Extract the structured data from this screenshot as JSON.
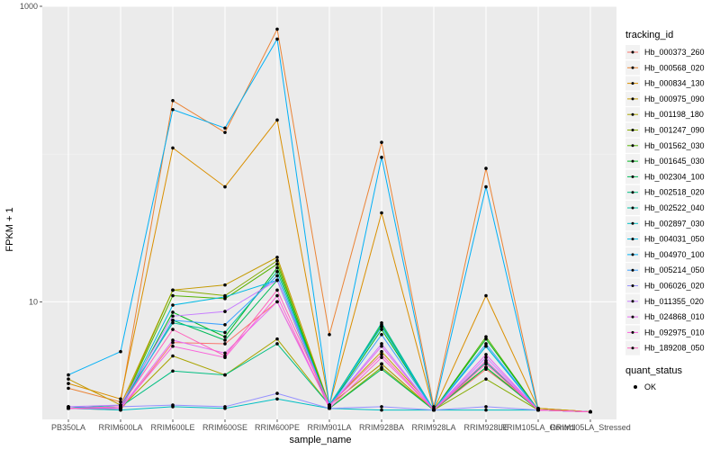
{
  "chart_data": {
    "type": "line",
    "ylabel": "FPKM + 1",
    "xlabel": "sample_name",
    "y_scale": "log10",
    "ylim": [
      1.6,
      1000
    ],
    "y_ticks": [
      10,
      1000
    ],
    "y_tick_labels": [
      "10",
      "1000"
    ],
    "grid": true,
    "legend_position": "right",
    "categories": [
      "PB350LA",
      "RRIM600LA",
      "RRIM600LE",
      "RRIM600SE",
      "RRIM600PE",
      "RRIM901LA",
      "RRIM928BA",
      "RRIM928LA",
      "RRIM928LE",
      "RRIM105LA_Control",
      "RRIM105LA_Stressed"
    ],
    "legend_title": "tracking_id",
    "quant_legend_title": "quant_status",
    "quant_legend_label": "OK",
    "series": [
      {
        "name": "Hb_000373_260",
        "color": "#F8766D",
        "values": [
          1.9,
          1.85,
          5.3,
          5.2,
          10.0,
          2.0,
          3.8,
          1.85,
          3.5,
          1.9,
          1.8
        ]
      },
      {
        "name": "Hb_000568_020",
        "color": "#EB8335",
        "values": [
          2.6,
          2.1,
          230,
          140,
          700,
          6.0,
          120,
          1.95,
          80,
          1.9,
          1.8
        ]
      },
      {
        "name": "Hb_000834_130",
        "color": "#DA8F00",
        "values": [
          2.8,
          2.2,
          110,
          60,
          170,
          2.0,
          40,
          1.85,
          11,
          1.9,
          1.8
        ]
      },
      {
        "name": "Hb_000975_090",
        "color": "#C49A00",
        "values": [
          3.0,
          2.0,
          12,
          13,
          20,
          2.0,
          4.6,
          1.9,
          3.6,
          1.9,
          1.8
        ]
      },
      {
        "name": "Hb_001198_180",
        "color": "#A9A400",
        "values": [
          1.95,
          1.9,
          4.3,
          3.2,
          5.6,
          2.0,
          3.8,
          1.85,
          3.6,
          1.85,
          1.8
        ]
      },
      {
        "name": "Hb_001247_090",
        "color": "#86AC00",
        "values": [
          1.9,
          1.9,
          12,
          11,
          19,
          1.9,
          3.6,
          1.85,
          3.0,
          1.85,
          1.8
        ]
      },
      {
        "name": "Hb_001562_030",
        "color": "#53B400",
        "values": [
          1.9,
          1.9,
          11,
          10.5,
          18,
          2.0,
          7.0,
          1.85,
          5.8,
          1.85,
          1.8
        ]
      },
      {
        "name": "Hb_001645_030",
        "color": "#00B81F",
        "values": [
          1.9,
          1.9,
          8.5,
          5.8,
          17,
          1.95,
          6.5,
          1.85,
          5.6,
          1.85,
          1.8
        ]
      },
      {
        "name": "Hb_002304_100",
        "color": "#00BB59",
        "values": [
          1.95,
          1.9,
          7.5,
          5.5,
          14,
          1.9,
          3.5,
          1.85,
          3.6,
          1.85,
          1.8
        ]
      },
      {
        "name": "Hb_002518_020",
        "color": "#00BE81",
        "values": [
          1.9,
          1.95,
          3.4,
          3.2,
          5.2,
          2.0,
          6.8,
          1.85,
          3.9,
          1.85,
          1.8
        ]
      },
      {
        "name": "Hb_002522_040",
        "color": "#00C0A3",
        "values": [
          1.9,
          2.0,
          7.2,
          6.2,
          16,
          1.95,
          7.2,
          1.85,
          5.0,
          1.85,
          1.8
        ]
      },
      {
        "name": "Hb_002897_030",
        "color": "#00BFC4",
        "values": [
          1.9,
          1.85,
          1.95,
          1.9,
          2.2,
          1.9,
          1.85,
          1.85,
          1.85,
          1.85,
          1.8
        ]
      },
      {
        "name": "Hb_004031_050",
        "color": "#00B9E3",
        "values": [
          1.95,
          1.9,
          9.5,
          10.8,
          14,
          2.0,
          6.8,
          1.85,
          5.0,
          1.85,
          1.8
        ]
      },
      {
        "name": "Hb_004970_100",
        "color": "#00B0F6",
        "values": [
          3.2,
          4.6,
          200,
          150,
          600,
          2.0,
          95,
          1.85,
          60,
          1.85,
          1.8
        ]
      },
      {
        "name": "Hb_005214_050",
        "color": "#3DA1FF",
        "values": [
          1.9,
          1.9,
          7.5,
          7.0,
          15,
          1.95,
          6.0,
          1.85,
          5.2,
          1.85,
          1.8
        ]
      },
      {
        "name": "Hb_006026_020",
        "color": "#9590FF",
        "values": [
          1.9,
          1.95,
          2.0,
          1.95,
          2.4,
          1.9,
          1.95,
          1.85,
          1.95,
          1.85,
          1.8
        ]
      },
      {
        "name": "Hb_011355_020",
        "color": "#C77CFF",
        "values": [
          1.95,
          2.0,
          8.0,
          8.6,
          14,
          1.95,
          5.2,
          1.85,
          4.2,
          1.85,
          1.8
        ]
      },
      {
        "name": "Hb_024868_010",
        "color": "#E76BF3",
        "values": [
          1.9,
          1.9,
          5.5,
          4.5,
          10,
          1.95,
          5.0,
          1.85,
          4.4,
          1.85,
          1.8
        ]
      },
      {
        "name": "Hb_092975_010",
        "color": "#FA62DB",
        "values": [
          1.9,
          1.9,
          5.0,
          4.2,
          11,
          1.9,
          4.2,
          1.85,
          4.0,
          1.85,
          1.8
        ]
      },
      {
        "name": "Hb_189208_050",
        "color": "#FF62BC",
        "values": [
          1.9,
          1.95,
          6.5,
          4.3,
          12,
          2.0,
          4.4,
          1.85,
          3.8,
          1.85,
          1.8
        ]
      }
    ]
  },
  "colors": {
    "panel_background": "#EBEBEB",
    "grid_major": "#FFFFFF",
    "point": "#000000"
  }
}
